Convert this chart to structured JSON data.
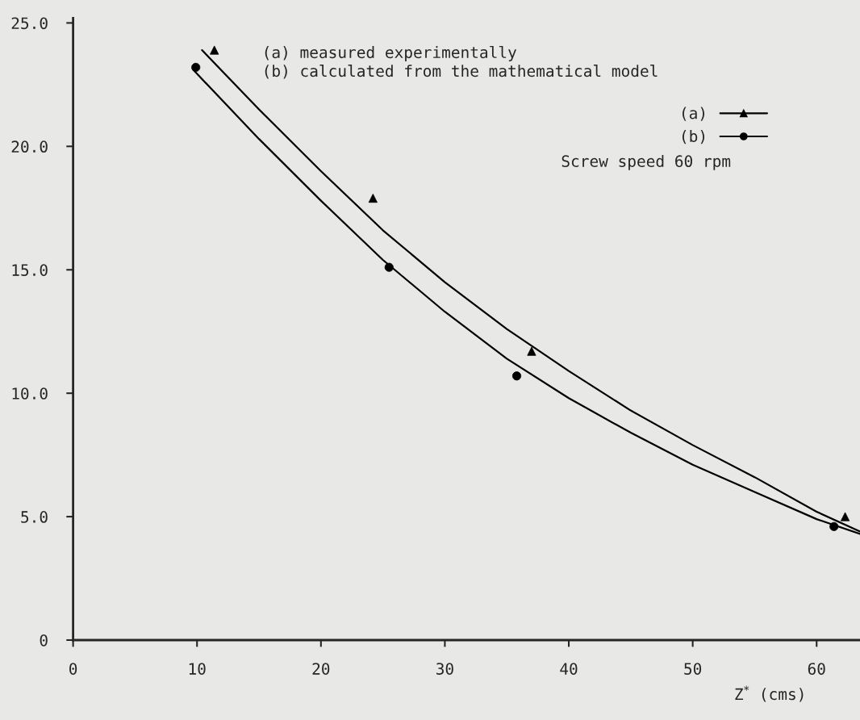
{
  "chart_data": {
    "type": "scatter",
    "xlabel": "Z$^{*}$ (cms)",
    "annotations": [
      "(a) measured experimentally",
      "(b) calculated from the mathematical model",
      "Screw speed 60 rpm"
    ],
    "xlim": [
      0,
      63.5
    ],
    "ylim": [
      0,
      25.2
    ],
    "xticks": [
      0,
      10,
      20,
      30,
      40,
      50,
      60
    ],
    "yticks": [
      0,
      {
        "value": 5,
        "label": "5.0"
      },
      {
        "value": 10,
        "label": "10.0"
      },
      {
        "value": 15,
        "label": "15.0"
      },
      {
        "value": 20,
        "label": "20.0"
      },
      {
        "value": 25,
        "label": "25.0"
      }
    ],
    "grid": false,
    "legend": "top right",
    "series": [
      {
        "name": "(a)",
        "marker": "triangle",
        "color": "#000000",
        "x": [
          11.4,
          24.2,
          37.0,
          62.3
        ],
        "values": [
          23.9,
          17.9,
          11.7,
          5.0
        ]
      },
      {
        "name": "(b)",
        "marker": "circle",
        "color": "#000000",
        "x": [
          9.9,
          25.5,
          35.8,
          61.4
        ],
        "values": [
          23.2,
          15.1,
          10.7,
          4.6
        ]
      },
      {
        "type": "line",
        "color": "#000000",
        "x": [
          10.4,
          15,
          20,
          25,
          30,
          35,
          40,
          45,
          50,
          55,
          60,
          63.5
        ],
        "values": [
          23.9,
          21.5,
          19.0,
          16.6,
          14.5,
          12.6,
          10.9,
          9.3,
          7.9,
          6.6,
          5.2,
          4.4
        ]
      },
      {
        "type": "line",
        "color": "#000000",
        "x": [
          9.7,
          15,
          20,
          25,
          30,
          35,
          40,
          45,
          50,
          55,
          60,
          63.5
        ],
        "values": [
          23.1,
          20.3,
          17.8,
          15.4,
          13.3,
          11.4,
          9.8,
          8.4,
          7.1,
          6.0,
          4.9,
          4.3
        ]
      }
    ]
  }
}
